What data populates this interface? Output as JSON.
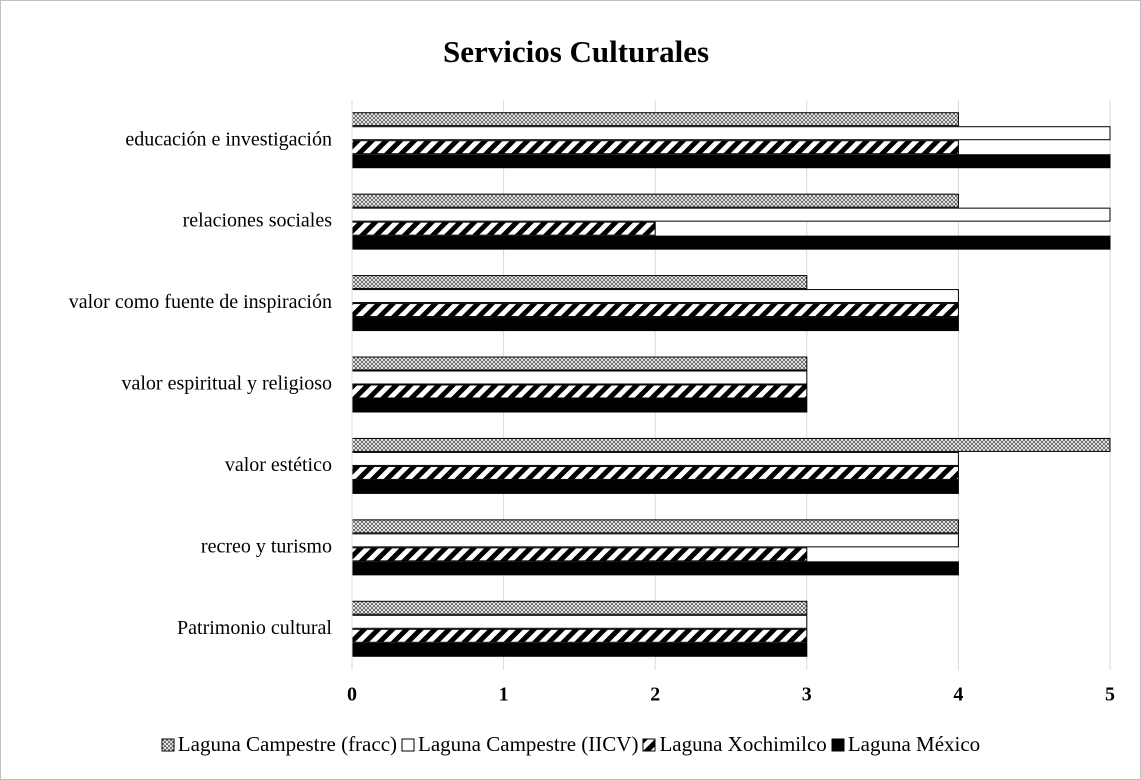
{
  "chart_data": {
    "type": "barh",
    "title": "Servicios Culturales",
    "categories": [
      "Patrimonio cultural",
      "recreo y turismo",
      "valor estético",
      "valor espiritual y religioso",
      "valor como fuente de inspiración",
      "relaciones sociales",
      "educación e investigación"
    ],
    "series": [
      {
        "name": "Laguna Campestre (fracc)",
        "color": "#bfbfbf",
        "pattern": "crosshatch",
        "values": [
          3,
          4,
          5,
          3,
          3,
          4,
          4
        ]
      },
      {
        "name": "Laguna Campestre (IICV)",
        "color": "#ffffff",
        "pattern": "none",
        "values": [
          3,
          4,
          4,
          3,
          4,
          5,
          5
        ]
      },
      {
        "name": "Laguna Xochimilco",
        "color": "#000000",
        "pattern": "diagonal",
        "values": [
          3,
          3,
          4,
          3,
          4,
          2,
          4
        ]
      },
      {
        "name": "Laguna México",
        "color": "#000000",
        "pattern": "none",
        "values": [
          3,
          4,
          4,
          3,
          4,
          5,
          5
        ]
      }
    ],
    "xlim": [
      0,
      5
    ],
    "xticks": [
      0,
      1,
      2,
      3,
      4,
      5
    ],
    "grid": true,
    "legend": "bottom"
  }
}
